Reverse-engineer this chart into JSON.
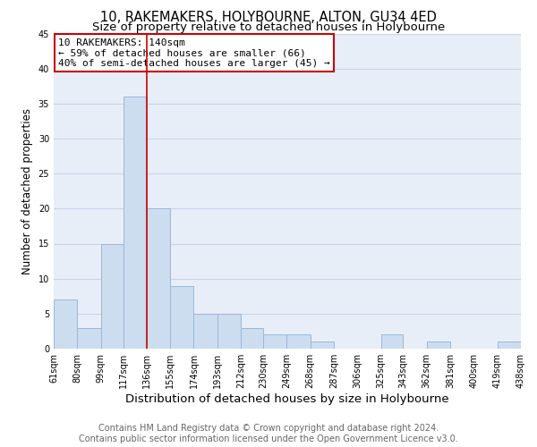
{
  "title": "10, RAKEMAKERS, HOLYBOURNE, ALTON, GU34 4ED",
  "subtitle": "Size of property relative to detached houses in Holybourne",
  "xlabel": "Distribution of detached houses by size in Holybourne",
  "ylabel": "Number of detached properties",
  "bar_edges": [
    61,
    80,
    99,
    117,
    136,
    155,
    174,
    193,
    212,
    230,
    249,
    268,
    287,
    306,
    325,
    343,
    362,
    381,
    400,
    419,
    438
  ],
  "bar_heights": [
    7,
    3,
    15,
    36,
    20,
    9,
    5,
    5,
    3,
    2,
    2,
    1,
    0,
    0,
    2,
    0,
    1,
    0,
    0,
    1
  ],
  "bar_color": "#ccddf0",
  "bar_edgecolor": "#9ab8d8",
  "vline_x": 136,
  "vline_color": "#cc0000",
  "annotation_line1": "10 RAKEMAKERS: 140sqm",
  "annotation_line2": "← 59% of detached houses are smaller (66)",
  "annotation_line3": "40% of semi-detached houses are larger (45) →",
  "ylim": [
    0,
    45
  ],
  "yticks": [
    0,
    5,
    10,
    15,
    20,
    25,
    30,
    35,
    40,
    45
  ],
  "tick_labels": [
    "61sqm",
    "80sqm",
    "99sqm",
    "117sqm",
    "136sqm",
    "155sqm",
    "174sqm",
    "193sqm",
    "212sqm",
    "230sqm",
    "249sqm",
    "268sqm",
    "287sqm",
    "306sqm",
    "325sqm",
    "343sqm",
    "362sqm",
    "381sqm",
    "400sqm",
    "419sqm",
    "438sqm"
  ],
  "footer_line1": "Contains HM Land Registry data © Crown copyright and database right 2024.",
  "footer_line2": "Contains public sector information licensed under the Open Government Licence v3.0.",
  "grid_color": "#c8d4e8",
  "background_color": "#e8eef8",
  "title_fontsize": 10.5,
  "subtitle_fontsize": 9.5,
  "xlabel_fontsize": 9.5,
  "ylabel_fontsize": 8.5,
  "tick_fontsize": 7,
  "annot_fontsize": 8,
  "footer_fontsize": 7
}
